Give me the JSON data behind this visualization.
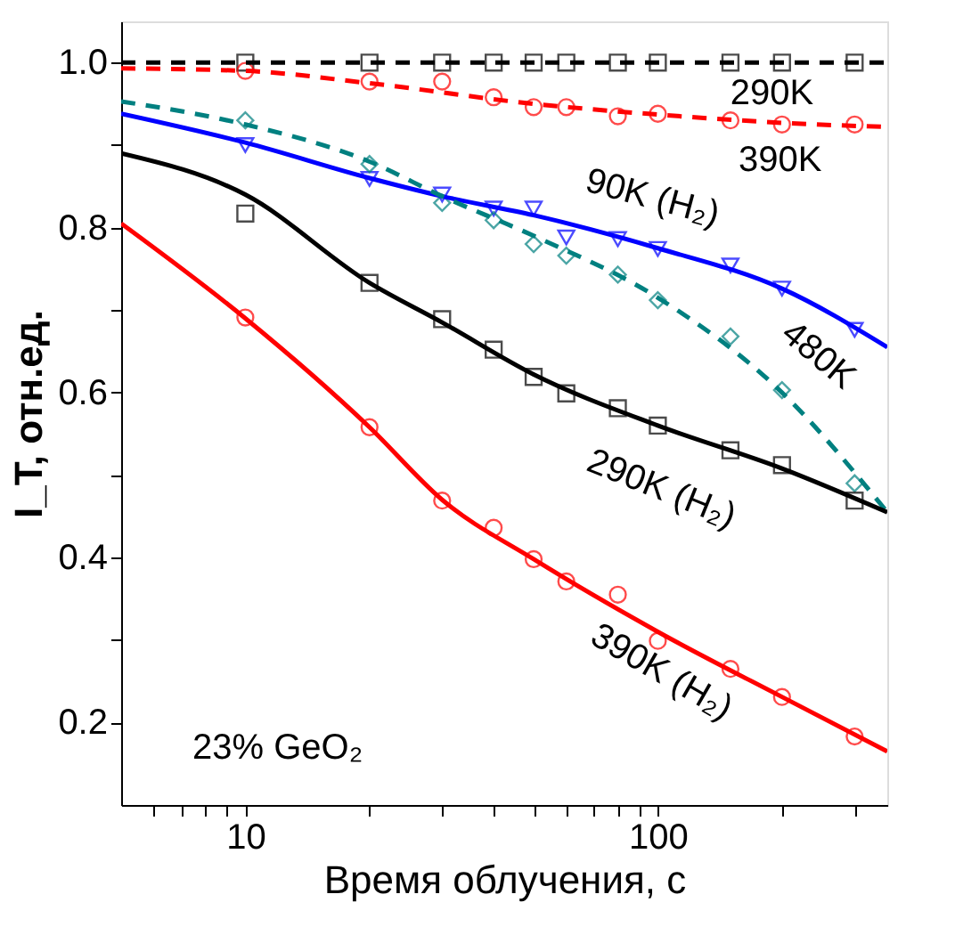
{
  "chart_data": {
    "type": "scatter",
    "xlabel": "Время облучения, с",
    "ylabel": "I_T, отн.ед.",
    "log": "x",
    "grid": false,
    "xlim": [
      5,
      360
    ],
    "ylim": [
      0.1,
      1.05
    ],
    "xticks": [
      {
        "value": 6,
        "label": null
      },
      {
        "value": 7,
        "label": null
      },
      {
        "value": 8,
        "label": null
      },
      {
        "value": 9,
        "label": null
      },
      10,
      {
        "value": 20,
        "label": null
      },
      {
        "value": 30,
        "label": null
      },
      {
        "value": 40,
        "label": null
      },
      {
        "value": 50,
        "label": null
      },
      {
        "value": 60,
        "label": null
      },
      {
        "value": 70,
        "label": null
      },
      {
        "value": 80,
        "label": null
      },
      {
        "value": 90,
        "label": null
      },
      100,
      {
        "value": 200,
        "label": null
      },
      {
        "value": 300,
        "label": null
      }
    ],
    "yticks": [
      0.2,
      {
        "value": 0.3,
        "label": null
      },
      0.4,
      {
        "value": 0.5,
        "label": null
      },
      0.6,
      {
        "value": 0.7,
        "label": null
      },
      0.8,
      {
        "value": 0.9,
        "label": null
      },
      {
        "value": 1,
        "label": "1.0"
      }
    ],
    "x": [
      10,
      20,
      30,
      40,
      50,
      60,
      80,
      100,
      150,
      200,
      300
    ],
    "annotations": [
      "23% GeO₂"
    ],
    "series": [
      {
        "name": "290K",
        "color": "#000000",
        "marker": "square",
        "values": [
          1.0,
          1.0,
          1.0,
          1.0,
          1.0,
          1.0,
          1.0,
          1.0,
          1.0,
          1.0,
          1.0
        ]
      },
      {
        "name": "390K",
        "color": "#ff0000",
        "marker": "circle",
        "values": [
          0.99,
          0.977,
          0.977,
          0.958,
          0.946,
          0.946,
          0.935,
          0.938,
          0.93,
          0.925,
          0.925
        ]
      },
      {
        "name": "90K (H₂)",
        "color": "#0000ff",
        "marker": "triangle",
        "values": [
          0.9,
          0.859,
          0.84,
          0.823,
          0.823,
          0.788,
          0.786,
          0.774,
          0.754,
          0.726,
          0.676
        ]
      },
      {
        "name": "480K",
        "color": "#008080",
        "marker": "diamond",
        "values": [
          0.93,
          0.877,
          0.83,
          0.809,
          0.78,
          0.766,
          0.743,
          0.712,
          0.668,
          0.603,
          0.49
        ]
      },
      {
        "name": "290K (H₂)",
        "color": "#000000",
        "marker": "square",
        "values": [
          0.817,
          0.733,
          0.689,
          0.652,
          0.619,
          0.599,
          0.581,
          0.56,
          0.53,
          0.512,
          0.469
        ]
      },
      {
        "name": "390K (H₂)",
        "color": "#ff0000",
        "marker": "circle",
        "values": [
          0.691,
          0.558,
          0.469,
          0.436,
          0.398,
          0.371,
          0.355,
          0.299,
          0.265,
          0.231,
          0.183
        ]
      },
      {
        "type": "line",
        "color": "#000000",
        "line_style": "dashed",
        "x": [
          5,
          360
        ],
        "values": [
          1.0,
          1.0
        ]
      },
      {
        "type": "line",
        "color": "#ff0000",
        "line_style": "dashed",
        "x": [
          5,
          10,
          20,
          50,
          100,
          200,
          360
        ],
        "values": [
          0.993,
          0.99,
          0.975,
          0.95,
          0.937,
          0.927,
          0.922
        ]
      },
      {
        "type": "line",
        "color": "#0000ff",
        "line_style": "solid",
        "x": [
          5,
          10,
          20,
          30,
          50,
          100,
          200,
          360
        ],
        "values": [
          0.938,
          0.903,
          0.86,
          0.838,
          0.815,
          0.775,
          0.726,
          0.655
        ]
      },
      {
        "type": "line",
        "color": "#008080",
        "line_style": "dashed",
        "x": [
          5,
          10,
          20,
          30,
          50,
          100,
          200,
          360
        ],
        "values": [
          0.953,
          0.925,
          0.88,
          0.838,
          0.79,
          0.715,
          0.6,
          0.455
        ]
      },
      {
        "type": "line",
        "color": "#000000",
        "line_style": "solid",
        "x": [
          5,
          10,
          20,
          30,
          50,
          100,
          200,
          360
        ],
        "values": [
          0.89,
          0.84,
          0.733,
          0.685,
          0.622,
          0.56,
          0.508,
          0.455
        ]
      },
      {
        "type": "line",
        "color": "#ff0000",
        "line_style": "solid",
        "x": [
          5,
          10,
          20,
          30,
          50,
          100,
          200,
          360
        ],
        "values": [
          0.805,
          0.69,
          0.558,
          0.47,
          0.398,
          0.31,
          0.231,
          0.165
        ]
      }
    ]
  }
}
